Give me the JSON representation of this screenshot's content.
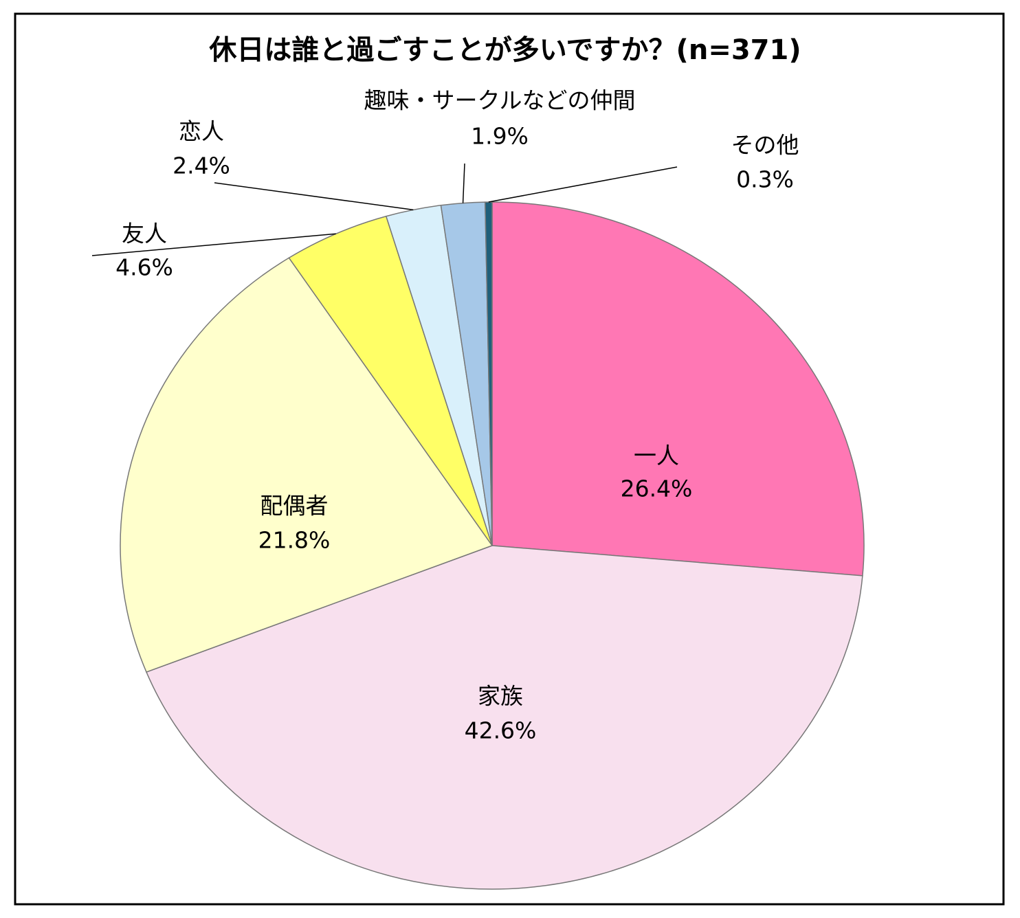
{
  "chart_data": {
    "type": "pie",
    "title": "休日は誰と過ごすことが多いですか？(n=371)",
    "categories": [
      "一人",
      "家族",
      "配偶者",
      "友人",
      "恋人",
      "趣味・サークルなどの仲間",
      "その他"
    ],
    "values": [
      26.4,
      42.6,
      21.8,
      4.6,
      2.4,
      1.9,
      0.3
    ],
    "value_labels": [
      "26.4%",
      "42.6%",
      "21.8%",
      "4.6%",
      "2.4%",
      "1.9%",
      "0.3%"
    ],
    "colors": [
      "#ff77b4",
      "#f8e0ee",
      "#ffffcc",
      "#ffff66",
      "#d9f0fb",
      "#a6c8e8",
      "#1f5f7a"
    ]
  }
}
